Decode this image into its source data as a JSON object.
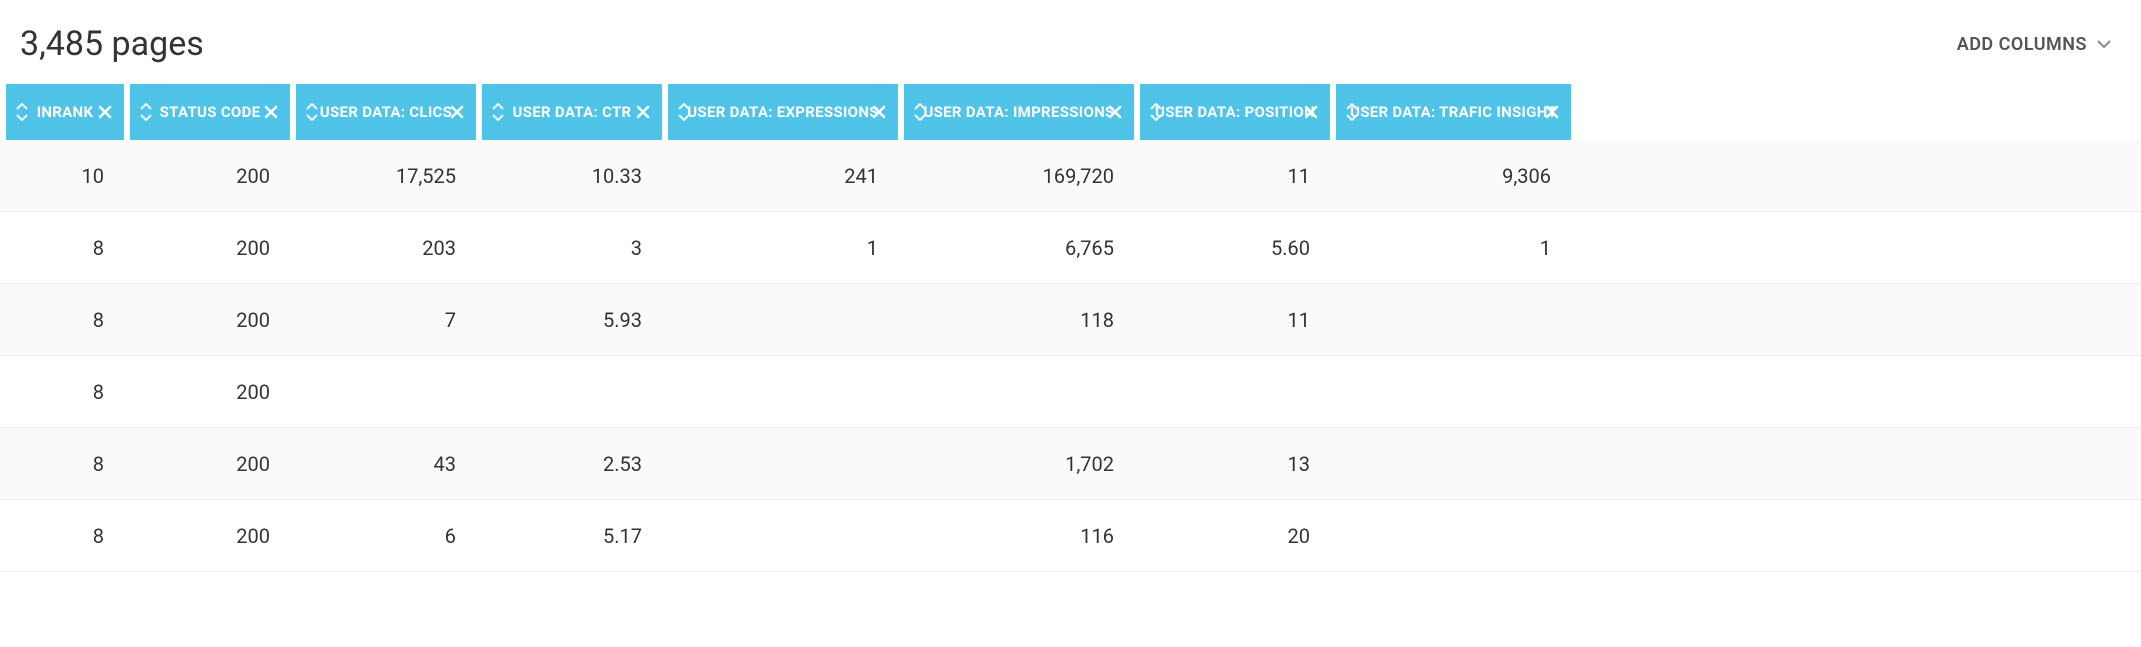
{
  "header": {
    "page_count_label": "3,485 pages",
    "add_columns_label": "ADD COLUMNS"
  },
  "colors": {
    "header_bg": "#4fc3e8",
    "header_text": "#ffffff",
    "row_alt_bg": "#fafafa",
    "row_bg": "#ffffff",
    "border": "#eeeeee",
    "body_text": "#333333"
  },
  "table": {
    "columns": [
      {
        "label": "INRANK",
        "removable": true
      },
      {
        "label": "STATUS CODE",
        "removable": true
      },
      {
        "label": "USER DATA: CLICS",
        "removable": true
      },
      {
        "label": "USER DATA: CTR",
        "removable": true
      },
      {
        "label": "USER DATA: EXPRESSIONS",
        "removable": true
      },
      {
        "label": "USER DATA: IMPRESSIONS",
        "removable": true
      },
      {
        "label": "USER DATA: POSITION",
        "removable": true
      },
      {
        "label": "USER DATA: TRAFIC INSIGHT",
        "removable": true
      }
    ],
    "rows": [
      [
        "10",
        "200",
        "17,525",
        "10.33",
        "241",
        "169,720",
        "11",
        "9,306"
      ],
      [
        "8",
        "200",
        "203",
        "3",
        "1",
        "6,765",
        "5.60",
        "1"
      ],
      [
        "8",
        "200",
        "7",
        "5.93",
        "",
        "118",
        "11",
        ""
      ],
      [
        "8",
        "200",
        "",
        "",
        "",
        "",
        "",
        ""
      ],
      [
        "8",
        "200",
        "43",
        "2.53",
        "",
        "1,702",
        "13",
        ""
      ],
      [
        "8",
        "200",
        "6",
        "5.17",
        "",
        "116",
        "20",
        ""
      ]
    ]
  }
}
